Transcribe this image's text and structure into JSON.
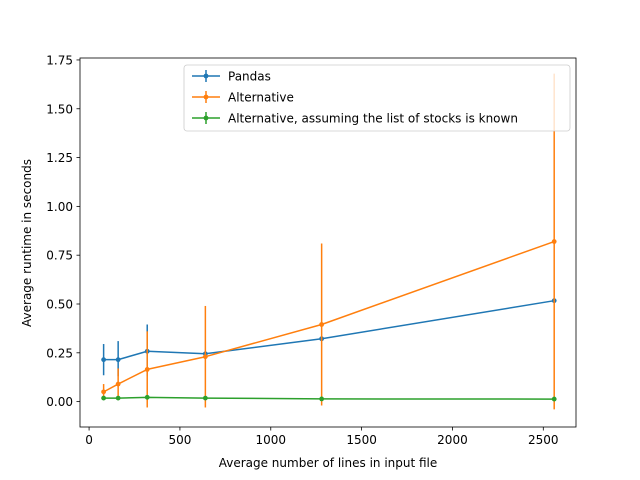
{
  "chart_data": {
    "type": "line",
    "xlabel": "Average number of lines in input file",
    "ylabel": "Average runtime in seconds",
    "xlim": [
      -50,
      2680
    ],
    "ylim": [
      -0.13,
      1.76
    ],
    "xticks": [
      0,
      500,
      1000,
      1500,
      2000,
      2500
    ],
    "xtick_labels": [
      "0",
      "500",
      "1000",
      "1500",
      "2000",
      "2500"
    ],
    "yticks": [
      0.0,
      0.25,
      0.5,
      0.75,
      1.0,
      1.25,
      1.5,
      1.75
    ],
    "ytick_labels": [
      "0.00",
      "0.25",
      "0.50",
      "0.75",
      "1.00",
      "1.25",
      "1.50",
      "1.75"
    ],
    "grid": false,
    "legend_position": "top-center",
    "series": [
      {
        "name": "Pandas",
        "color": "#1f77b4",
        "x": [
          80,
          160,
          320,
          640,
          1280,
          2560
        ],
        "y": [
          0.215,
          0.215,
          0.258,
          0.245,
          0.322,
          0.517
        ],
        "yerr_low": [
          0.135,
          0.13,
          0.13,
          0.24,
          0.31,
          0.51
        ],
        "yerr_high": [
          0.295,
          0.31,
          0.395,
          0.255,
          0.335,
          0.525
        ]
      },
      {
        "name": "Alternative",
        "color": "#ff7f0e",
        "x": [
          80,
          160,
          320,
          640,
          1280,
          2560
        ],
        "y": [
          0.05,
          0.09,
          0.165,
          0.23,
          0.395,
          0.82
        ],
        "yerr_low": [
          0.01,
          0.01,
          -0.03,
          -0.03,
          -0.02,
          -0.04
        ],
        "yerr_high": [
          0.09,
          0.17,
          0.36,
          0.49,
          0.81,
          1.68
        ]
      },
      {
        "name": "Alternative, assuming the list of stocks is known",
        "color": "#2ca02c",
        "x": [
          80,
          160,
          320,
          640,
          1280,
          2560
        ],
        "y": [
          0.018,
          0.018,
          0.022,
          0.018,
          0.014,
          0.013
        ],
        "yerr_low": [
          0.013,
          0.013,
          0.013,
          0.013,
          0.009,
          0.008
        ],
        "yerr_high": [
          0.023,
          0.023,
          0.031,
          0.023,
          0.019,
          0.018
        ]
      }
    ]
  }
}
